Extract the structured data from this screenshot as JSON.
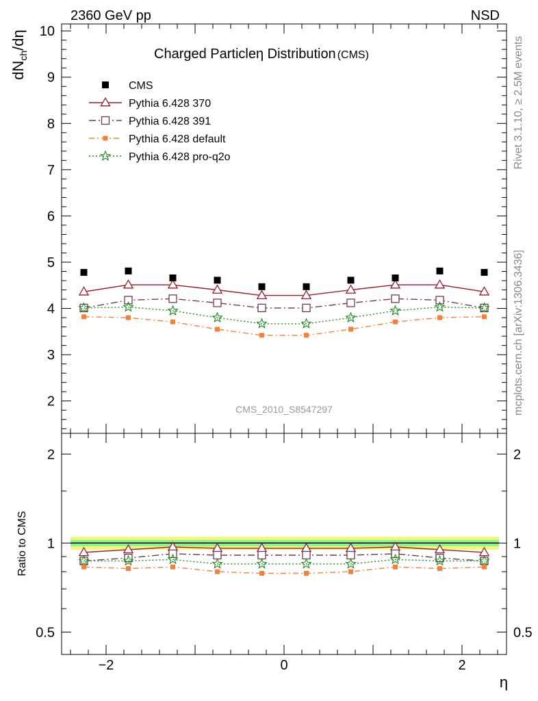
{
  "header": {
    "energy_label": "2360 GeV pp",
    "process_label": "NSD",
    "side_label_rivet": "Rivet 3.1.10, ≥ 2.5M events",
    "side_label_source": "mcplots.cern.ch [arXiv:1306.3436]",
    "analysis_id": "CMS_2010_S8547297"
  },
  "chart_data": [
    {
      "type": "line",
      "title": "Charged Particleη Distribution",
      "title_suffix": "(CMS)",
      "ylabel": "dN_ch/dη",
      "ylabel_main": "dN",
      "ylabel_sub": "ch",
      "ylabel_tail": "/dη",
      "xlim": [
        -2.5,
        2.5
      ],
      "ylim": [
        1.3,
        10.15
      ],
      "yticks": [
        2,
        3,
        4,
        5,
        6,
        7,
        8,
        9,
        10
      ],
      "x": [
        -2.25,
        -1.75,
        -1.25,
        -0.75,
        -0.25,
        0.25,
        0.75,
        1.25,
        1.75,
        2.25
      ],
      "legend_position": "top-left",
      "series": [
        {
          "name": "CMS",
          "style": "data",
          "color": "#000000",
          "marker": "square-filled",
          "values": [
            4.78,
            4.81,
            4.66,
            4.61,
            4.47,
            4.47,
            4.61,
            4.66,
            4.81,
            4.78
          ]
        },
        {
          "name": "Pythia 6.428 370",
          "style": "solid",
          "color": "#9a1a2a",
          "marker": "triangle-open",
          "values": [
            4.36,
            4.51,
            4.51,
            4.4,
            4.28,
            4.28,
            4.4,
            4.51,
            4.51,
            4.36
          ]
        },
        {
          "name": "Pythia 6.428 391",
          "style": "dashdot",
          "color": "#6b3a4e",
          "marker": "square-open",
          "values": [
            4.01,
            4.18,
            4.21,
            4.12,
            4.01,
            4.01,
            4.12,
            4.21,
            4.18,
            4.01
          ]
        },
        {
          "name": "Pythia 6.428 default",
          "style": "dashdot2",
          "color": "#f47f3a",
          "marker": "square-filled",
          "values": [
            3.82,
            3.8,
            3.71,
            3.55,
            3.42,
            3.42,
            3.55,
            3.71,
            3.8,
            3.82
          ]
        },
        {
          "name": "Pythia 6.428 pro-q2o",
          "style": "dotted",
          "color": "#1a8a1a",
          "marker": "star",
          "values": [
            4.01,
            4.03,
            3.95,
            3.8,
            3.67,
            3.67,
            3.8,
            3.95,
            4.03,
            4.01
          ]
        }
      ]
    },
    {
      "type": "line",
      "ylabel": "Ratio to CMS",
      "xlabel": "η",
      "xlim": [
        -2.5,
        2.5
      ],
      "ylim": [
        0.42,
        2.35
      ],
      "yscale": "log",
      "yticks": [
        0.5,
        1,
        2
      ],
      "ytick_labels": [
        "0.5",
        "1",
        "2"
      ],
      "xticks": [
        -2,
        0,
        2
      ],
      "xtick_labels": [
        "−2",
        "0",
        "2"
      ],
      "band": {
        "inner_color": "#8ef28e",
        "outer_color": "#f6f67a",
        "inner_halfwidth": 0.025,
        "outer_halfwidth": 0.05
      },
      "x": [
        -2.25,
        -1.75,
        -1.25,
        -0.75,
        -0.25,
        0.25,
        0.75,
        1.25,
        1.75,
        2.25
      ],
      "series": [
        {
          "name": "Pythia 6.428 370",
          "style": "solid",
          "color": "#9a1a2a",
          "marker": "triangle-open",
          "values": [
            0.93,
            0.95,
            0.97,
            0.96,
            0.96,
            0.96,
            0.96,
            0.97,
            0.95,
            0.93
          ]
        },
        {
          "name": "Pythia 6.428 391",
          "style": "dashdot",
          "color": "#6b3a4e",
          "marker": "square-open",
          "values": [
            0.87,
            0.89,
            0.92,
            0.91,
            0.91,
            0.91,
            0.91,
            0.92,
            0.89,
            0.87
          ]
        },
        {
          "name": "Pythia 6.428 default",
          "style": "dashdot2",
          "color": "#f47f3a",
          "marker": "square-filled",
          "values": [
            0.83,
            0.82,
            0.83,
            0.8,
            0.79,
            0.79,
            0.8,
            0.83,
            0.82,
            0.83
          ]
        },
        {
          "name": "Pythia 6.428 pro-q2o",
          "style": "dotted",
          "color": "#1a8a1a",
          "marker": "star",
          "values": [
            0.87,
            0.87,
            0.88,
            0.85,
            0.85,
            0.85,
            0.85,
            0.88,
            0.87,
            0.87
          ]
        }
      ]
    }
  ]
}
